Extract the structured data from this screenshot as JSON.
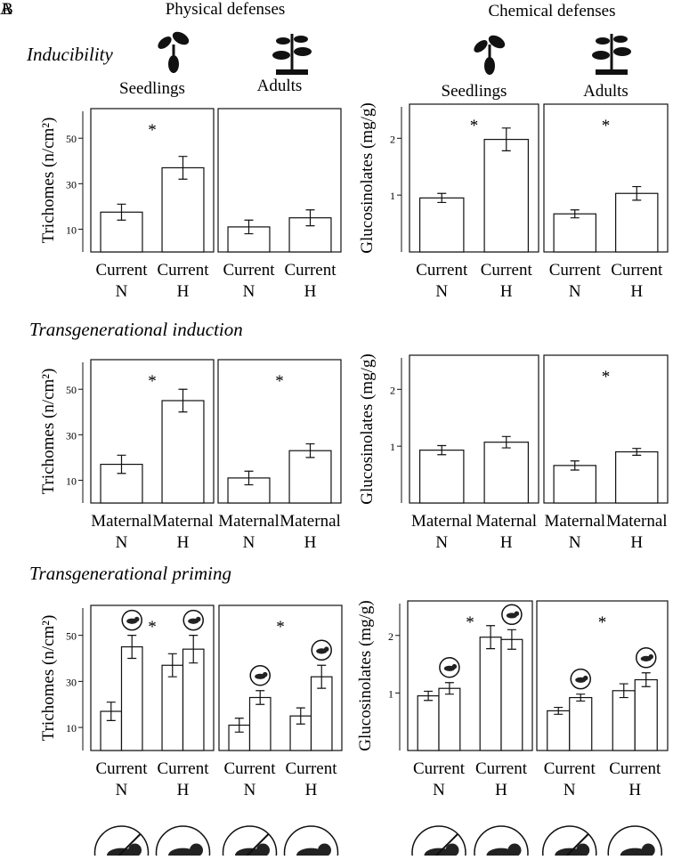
{
  "labels": {
    "panel_a": "A",
    "panel_b": "B",
    "physical": "Physical defenses",
    "chemical": "Chemical defenses",
    "inducibility": "Inducibility",
    "induction": "Transgenerational induction",
    "priming": "Transgenerational priming"
  },
  "chart_data": [
    {
      "type": "bar",
      "title": "Seedlings",
      "ylabel": "Trichomes (n/cm²)",
      "annotation": "*",
      "categories": [
        [
          "Current",
          "N"
        ],
        [
          "Current",
          "H"
        ]
      ],
      "series": [
        {
          "values": [
            17.5,
            37
          ],
          "errors": [
            3.5,
            5
          ]
        }
      ],
      "ylim": [
        0,
        63
      ],
      "yticks": [
        10,
        30,
        50
      ]
    },
    {
      "type": "bar",
      "title": "Adults",
      "categories": [
        [
          "Current",
          "N"
        ],
        [
          "Current",
          "H"
        ]
      ],
      "series": [
        {
          "values": [
            11,
            15
          ],
          "errors": [
            3,
            3.5
          ]
        }
      ],
      "ylim": [
        0,
        63
      ]
    },
    {
      "type": "bar",
      "title": "Seedlings",
      "ylabel": "Glucosinolates  (mg/g)",
      "annotation": "*",
      "categories": [
        [
          "Current",
          "N"
        ],
        [
          "Current",
          "H"
        ]
      ],
      "series": [
        {
          "values": [
            0.95,
            1.98
          ],
          "errors": [
            0.08,
            0.2
          ]
        }
      ],
      "ylim": [
        0,
        2.6
      ],
      "yticks": [
        1,
        2
      ]
    },
    {
      "type": "bar",
      "title": "Adults",
      "annotation": "*",
      "categories": [
        [
          "Current",
          "N"
        ],
        [
          "Current",
          "H"
        ]
      ],
      "series": [
        {
          "values": [
            0.67,
            1.03
          ],
          "errors": [
            0.07,
            0.12
          ]
        }
      ],
      "ylim": [
        0,
        2.6
      ]
    },
    {
      "type": "bar",
      "ylabel": "Trichomes (n/cm²)",
      "annotation": "*",
      "categories": [
        [
          "Maternal",
          "N"
        ],
        [
          "Maternal",
          "H"
        ]
      ],
      "series": [
        {
          "values": [
            17,
            45
          ],
          "errors": [
            4,
            5
          ]
        }
      ],
      "ylim": [
        0,
        63
      ],
      "yticks": [
        10,
        30,
        50
      ]
    },
    {
      "type": "bar",
      "annotation": "*",
      "categories": [
        [
          "Maternal",
          "N"
        ],
        [
          "Maternal",
          "H"
        ]
      ],
      "series": [
        {
          "values": [
            11,
            23
          ],
          "errors": [
            3,
            3
          ]
        }
      ],
      "ylim": [
        0,
        63
      ]
    },
    {
      "type": "bar",
      "ylabel": "Glucosinolates  (mg/g)",
      "categories": [
        [
          "Maternal",
          "N"
        ],
        [
          "Maternal",
          "H"
        ]
      ],
      "series": [
        {
          "values": [
            0.93,
            1.07
          ],
          "errors": [
            0.08,
            0.1
          ]
        }
      ],
      "ylim": [
        0,
        2.6
      ],
      "yticks": [
        1,
        2
      ]
    },
    {
      "type": "bar",
      "annotation": "*",
      "categories": [
        [
          "Maternal",
          "N"
        ],
        [
          "Maternal",
          "H"
        ]
      ],
      "series": [
        {
          "values": [
            0.66,
            0.9
          ],
          "errors": [
            0.08,
            0.06
          ]
        }
      ],
      "ylim": [
        0,
        2.6
      ]
    },
    {
      "type": "bar",
      "ylabel": "Trichomes (n/cm²)",
      "annotation": "*",
      "categories": [
        [
          "Current",
          "N"
        ],
        [
          "Current",
          "H"
        ]
      ],
      "series": [
        {
          "values": [
            17,
            37
          ],
          "errors": [
            4,
            5
          ]
        },
        {
          "values": [
            45,
            44
          ],
          "errors": [
            5,
            6
          ]
        }
      ],
      "ylim": [
        0,
        63
      ],
      "yticks": [
        10,
        30,
        50
      ]
    },
    {
      "type": "bar",
      "annotation": "*",
      "categories": [
        [
          "Current",
          "N"
        ],
        [
          "Current",
          "H"
        ]
      ],
      "series": [
        {
          "values": [
            11,
            15
          ],
          "errors": [
            3,
            3.5
          ]
        },
        {
          "values": [
            23,
            32
          ],
          "errors": [
            3,
            5
          ]
        }
      ],
      "ylim": [
        0,
        63
      ]
    },
    {
      "type": "bar",
      "ylabel": "Glucosinolates (mg/g)",
      "annotation": "*",
      "categories": [
        [
          "Current",
          "N"
        ],
        [
          "Current",
          "H"
        ]
      ],
      "series": [
        {
          "values": [
            0.95,
            1.97
          ],
          "errors": [
            0.08,
            0.2
          ]
        },
        {
          "values": [
            1.08,
            1.93
          ],
          "errors": [
            0.1,
            0.17
          ]
        }
      ],
      "ylim": [
        0,
        2.6
      ],
      "yticks": [
        1,
        2
      ]
    },
    {
      "type": "bar",
      "annotation": "*",
      "categories": [
        [
          "Current",
          "N"
        ],
        [
          "Current",
          "H"
        ]
      ],
      "series": [
        {
          "values": [
            0.69,
            1.04
          ],
          "errors": [
            0.06,
            0.12
          ]
        },
        {
          "values": [
            0.92,
            1.23
          ],
          "errors": [
            0.06,
            0.12
          ]
        }
      ],
      "ylim": [
        0,
        2.6
      ]
    }
  ]
}
